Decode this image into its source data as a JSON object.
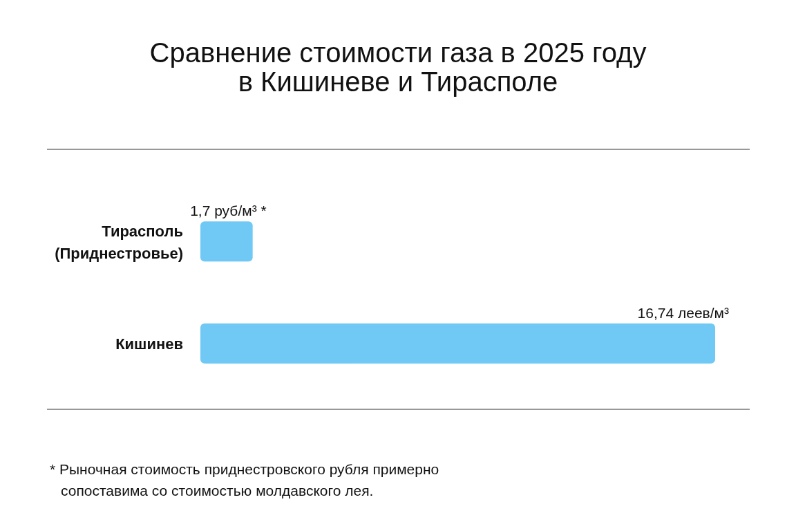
{
  "chart_data": {
    "type": "bar",
    "orientation": "horizontal",
    "title": "Сравнение стоимости газа в 2025 году\nв Кишиневе и Тирасполе",
    "categories": [
      "Тирасполь\n(Приднестровье)",
      "Кишинев"
    ],
    "values": [
      1.7,
      16.74
    ],
    "color": "#70c8f5",
    "value_labels": [
      "1,7 руб/м³ *",
      "16,74 леев/м³"
    ],
    "annotations": [
      "* Рыночная стоимость приднестровского рубля примерно\nсопоставима со стоимостью молдавского лея."
    ],
    "data_labels": false
  }
}
